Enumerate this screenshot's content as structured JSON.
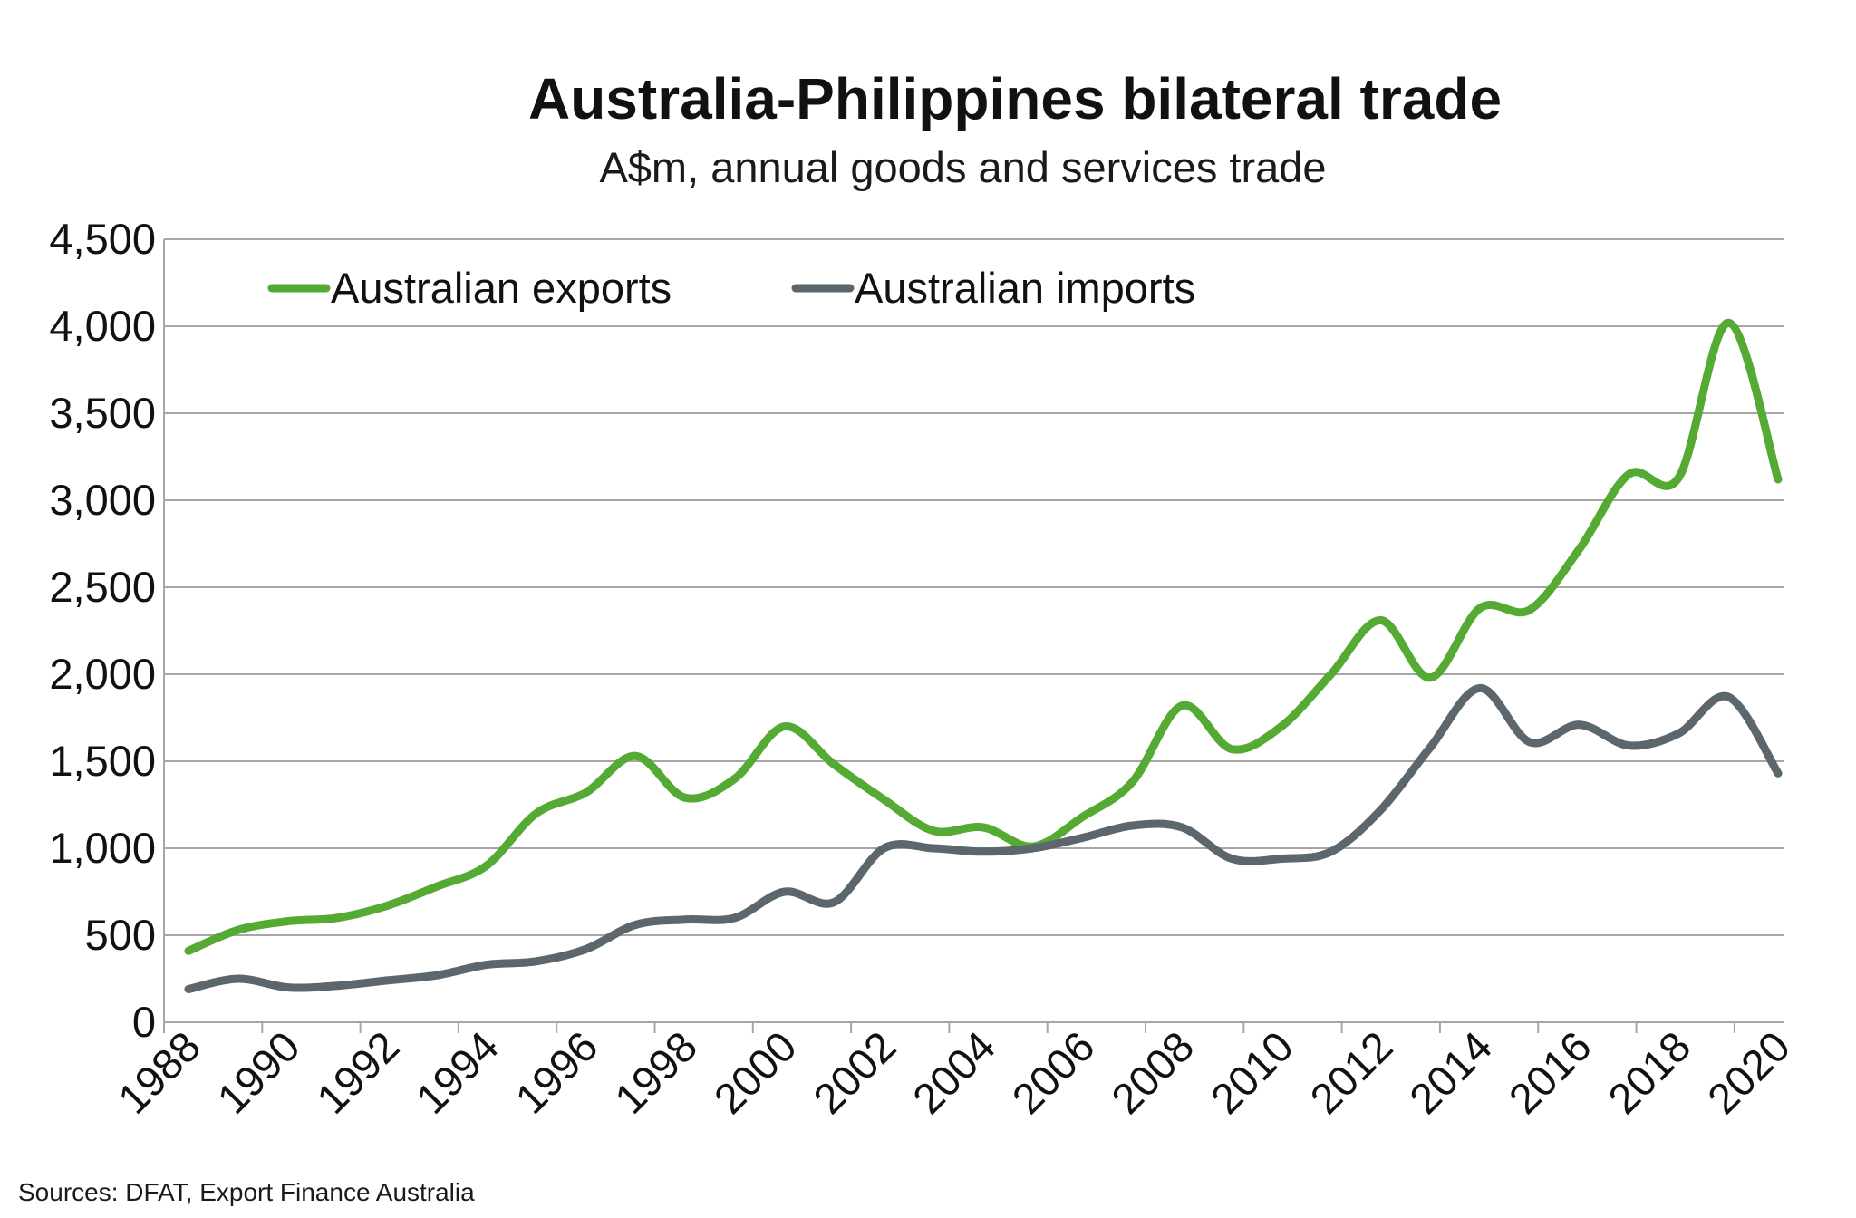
{
  "chart_data": {
    "type": "line",
    "title": "Australia-Philippines bilateral trade",
    "subtitle": "A$m, annual goods and services trade",
    "source": "Sources: DFAT, Export Finance Australia",
    "x": [
      1988,
      1989,
      1990,
      1991,
      1992,
      1993,
      1994,
      1995,
      1996,
      1997,
      1998,
      1999,
      2000,
      2001,
      2002,
      2003,
      2004,
      2005,
      2006,
      2007,
      2008,
      2009,
      2010,
      2011,
      2012,
      2013,
      2014,
      2015,
      2016,
      2017,
      2018,
      2019,
      2020
    ],
    "x_ticks": [
      "1988",
      "1990",
      "1992",
      "1994",
      "1996",
      "1998",
      "2000",
      "2002",
      "2004",
      "2006",
      "2008",
      "2010",
      "2012",
      "2014",
      "2016",
      "2018",
      "2020"
    ],
    "ylim": [
      0,
      4500
    ],
    "y_ticks": [
      "0",
      "500",
      "1,000",
      "1,500",
      "2,000",
      "2,500",
      "3,000",
      "3,500",
      "4,000",
      "4,500"
    ],
    "grid": true,
    "legend_position": "top-left",
    "series": [
      {
        "name": "Australian exports",
        "color": "#55aa33",
        "values": [
          410,
          530,
          580,
          600,
          670,
          780,
          900,
          1200,
          1320,
          1530,
          1290,
          1400,
          1700,
          1480,
          1280,
          1100,
          1120,
          1010,
          1180,
          1380,
          1820,
          1570,
          1700,
          2000,
          2310,
          1980,
          2380,
          2370,
          2720,
          3150,
          3130,
          4020,
          3120
        ]
      },
      {
        "name": "Australian imports",
        "color": "#5c666d",
        "values": [
          190,
          250,
          200,
          210,
          240,
          270,
          330,
          350,
          420,
          560,
          590,
          600,
          750,
          690,
          1000,
          1000,
          980,
          1000,
          1060,
          1130,
          1120,
          940,
          940,
          980,
          1220,
          1580,
          1920,
          1610,
          1710,
          1590,
          1660,
          1870,
          1430
        ]
      }
    ]
  }
}
